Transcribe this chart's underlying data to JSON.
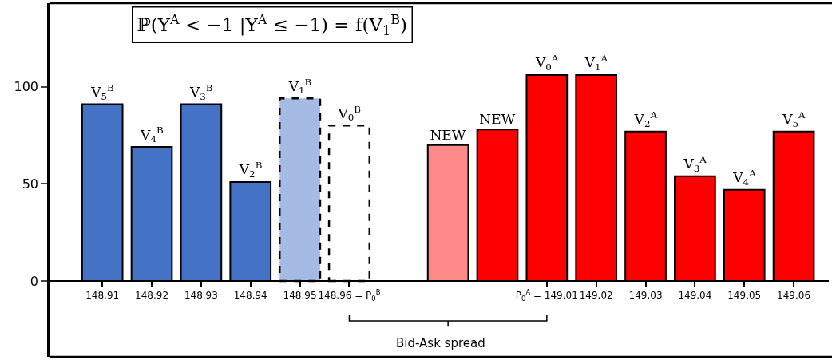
{
  "chart_data": {
    "type": "bar",
    "title": "ℙ(Y$^{A}$ < −1 |Y$^{A}$ ≤ −1) = f(V$_{1}$$^{B}$)",
    "categories": [
      "148.91",
      "148.92",
      "148.93",
      "148.94",
      "148.95",
      "148.96 = P$_{0}$$^{B}$",
      null,
      null,
      null,
      "P$_{0}$$^{A}$ = 149.01",
      "149.02",
      "149.03",
      "149.04",
      "149.05",
      "149.06"
    ],
    "series": [
      {
        "name": "V$_{5}$$^{B}$",
        "color": "#4472c4",
        "values": [
          91,
          null,
          null,
          null,
          null,
          null,
          null,
          null,
          null,
          null,
          null,
          null,
          null,
          null,
          null
        ]
      },
      {
        "name": "V$_{4}$$^{B}$",
        "color": "#4472c4",
        "values": [
          null,
          69,
          null,
          null,
          null,
          null,
          null,
          null,
          null,
          null,
          null,
          null,
          null,
          null,
          null
        ]
      },
      {
        "name": "V$_{3}$$^{B}$",
        "color": "#4472c4",
        "values": [
          null,
          null,
          91,
          null,
          null,
          null,
          null,
          null,
          null,
          null,
          null,
          null,
          null,
          null,
          null
        ]
      },
      {
        "name": "V$_{2}$$^{B}$",
        "color": "#4472c4",
        "values": [
          null,
          null,
          null,
          51,
          null,
          null,
          null,
          null,
          null,
          null,
          null,
          null,
          null,
          null,
          null
        ]
      },
      {
        "name": "V$_{1}$$^{B}$",
        "color": "#a6bbe3",
        "line_style": "dashed",
        "values": [
          null,
          null,
          null,
          null,
          94,
          null,
          null,
          null,
          null,
          null,
          null,
          null,
          null,
          null,
          null
        ]
      },
      {
        "name": "V$_{0}$$^{B}$",
        "color": "#ffffff",
        "line_style": "dashed",
        "values": [
          null,
          null,
          null,
          null,
          null,
          80,
          null,
          null,
          null,
          null,
          null,
          null,
          null,
          null,
          null
        ]
      },
      {
        "name": "NEW",
        "color": "#ff8a8a",
        "values": [
          null,
          null,
          null,
          null,
          null,
          null,
          null,
          70,
          null,
          null,
          null,
          null,
          null,
          null,
          null
        ]
      },
      {
        "name": "NEW",
        "color": "#ff0000",
        "values": [
          null,
          null,
          null,
          null,
          null,
          null,
          null,
          null,
          78,
          null,
          null,
          null,
          null,
          null,
          null
        ]
      },
      {
        "name": "V$_{0}$$^{A}$",
        "color": "#ff0000",
        "values": [
          null,
          null,
          null,
          null,
          null,
          null,
          null,
          null,
          null,
          106,
          null,
          null,
          null,
          null,
          null
        ]
      },
      {
        "name": "V$_{1}$$^{A}$",
        "color": "#ff0000",
        "values": [
          null,
          null,
          null,
          null,
          null,
          null,
          null,
          null,
          null,
          null,
          106,
          null,
          null,
          null,
          null
        ]
      },
      {
        "name": "V$_{2}$$^{A}$",
        "color": "#ff0000",
        "values": [
          null,
          null,
          null,
          null,
          null,
          null,
          null,
          null,
          null,
          null,
          null,
          77,
          null,
          null,
          null
        ]
      },
      {
        "name": "V$_{3}$$^{A}$",
        "color": "#ff0000",
        "values": [
          null,
          null,
          null,
          null,
          null,
          null,
          null,
          null,
          null,
          null,
          null,
          null,
          54,
          null,
          null
        ]
      },
      {
        "name": "V$_{4}$$^{A}$",
        "color": "#ff0000",
        "values": [
          null,
          null,
          null,
          null,
          null,
          null,
          null,
          null,
          null,
          null,
          null,
          null,
          null,
          47,
          null
        ]
      },
      {
        "name": "V$_{5}$$^{A}$",
        "color": "#ff0000",
        "values": [
          null,
          null,
          null,
          null,
          null,
          null,
          null,
          null,
          null,
          null,
          null,
          null,
          null,
          null,
          77
        ]
      }
    ],
    "ylim": [
      -39,
      143
    ],
    "yticks": [
      0,
      50,
      100
    ],
    "annotations": [
      "Bid-Ask spread"
    ]
  }
}
